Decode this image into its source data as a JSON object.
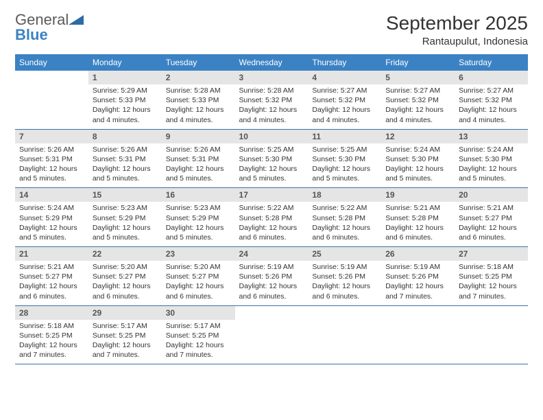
{
  "logo": {
    "text1": "General",
    "text2": "Blue",
    "shape_color": "#2f6aa8"
  },
  "title": "September 2025",
  "location": "Rantaupulut, Indonesia",
  "header_bg": "#3b82c4",
  "header_fg": "#ffffff",
  "daynum_bg": "#e5e5e5",
  "week_border": "#3b6fa0",
  "day_names": [
    "Sunday",
    "Monday",
    "Tuesday",
    "Wednesday",
    "Thursday",
    "Friday",
    "Saturday"
  ],
  "weeks": [
    [
      {
        "n": "",
        "lines": []
      },
      {
        "n": "1",
        "lines": [
          "Sunrise: 5:29 AM",
          "Sunset: 5:33 PM",
          "Daylight: 12 hours and 4 minutes."
        ]
      },
      {
        "n": "2",
        "lines": [
          "Sunrise: 5:28 AM",
          "Sunset: 5:33 PM",
          "Daylight: 12 hours and 4 minutes."
        ]
      },
      {
        "n": "3",
        "lines": [
          "Sunrise: 5:28 AM",
          "Sunset: 5:32 PM",
          "Daylight: 12 hours and 4 minutes."
        ]
      },
      {
        "n": "4",
        "lines": [
          "Sunrise: 5:27 AM",
          "Sunset: 5:32 PM",
          "Daylight: 12 hours and 4 minutes."
        ]
      },
      {
        "n": "5",
        "lines": [
          "Sunrise: 5:27 AM",
          "Sunset: 5:32 PM",
          "Daylight: 12 hours and 4 minutes."
        ]
      },
      {
        "n": "6",
        "lines": [
          "Sunrise: 5:27 AM",
          "Sunset: 5:32 PM",
          "Daylight: 12 hours and 4 minutes."
        ]
      }
    ],
    [
      {
        "n": "7",
        "lines": [
          "Sunrise: 5:26 AM",
          "Sunset: 5:31 PM",
          "Daylight: 12 hours and 5 minutes."
        ]
      },
      {
        "n": "8",
        "lines": [
          "Sunrise: 5:26 AM",
          "Sunset: 5:31 PM",
          "Daylight: 12 hours and 5 minutes."
        ]
      },
      {
        "n": "9",
        "lines": [
          "Sunrise: 5:26 AM",
          "Sunset: 5:31 PM",
          "Daylight: 12 hours and 5 minutes."
        ]
      },
      {
        "n": "10",
        "lines": [
          "Sunrise: 5:25 AM",
          "Sunset: 5:30 PM",
          "Daylight: 12 hours and 5 minutes."
        ]
      },
      {
        "n": "11",
        "lines": [
          "Sunrise: 5:25 AM",
          "Sunset: 5:30 PM",
          "Daylight: 12 hours and 5 minutes."
        ]
      },
      {
        "n": "12",
        "lines": [
          "Sunrise: 5:24 AM",
          "Sunset: 5:30 PM",
          "Daylight: 12 hours and 5 minutes."
        ]
      },
      {
        "n": "13",
        "lines": [
          "Sunrise: 5:24 AM",
          "Sunset: 5:30 PM",
          "Daylight: 12 hours and 5 minutes."
        ]
      }
    ],
    [
      {
        "n": "14",
        "lines": [
          "Sunrise: 5:24 AM",
          "Sunset: 5:29 PM",
          "Daylight: 12 hours and 5 minutes."
        ]
      },
      {
        "n": "15",
        "lines": [
          "Sunrise: 5:23 AM",
          "Sunset: 5:29 PM",
          "Daylight: 12 hours and 5 minutes."
        ]
      },
      {
        "n": "16",
        "lines": [
          "Sunrise: 5:23 AM",
          "Sunset: 5:29 PM",
          "Daylight: 12 hours and 5 minutes."
        ]
      },
      {
        "n": "17",
        "lines": [
          "Sunrise: 5:22 AM",
          "Sunset: 5:28 PM",
          "Daylight: 12 hours and 6 minutes."
        ]
      },
      {
        "n": "18",
        "lines": [
          "Sunrise: 5:22 AM",
          "Sunset: 5:28 PM",
          "Daylight: 12 hours and 6 minutes."
        ]
      },
      {
        "n": "19",
        "lines": [
          "Sunrise: 5:21 AM",
          "Sunset: 5:28 PM",
          "Daylight: 12 hours and 6 minutes."
        ]
      },
      {
        "n": "20",
        "lines": [
          "Sunrise: 5:21 AM",
          "Sunset: 5:27 PM",
          "Daylight: 12 hours and 6 minutes."
        ]
      }
    ],
    [
      {
        "n": "21",
        "lines": [
          "Sunrise: 5:21 AM",
          "Sunset: 5:27 PM",
          "Daylight: 12 hours and 6 minutes."
        ]
      },
      {
        "n": "22",
        "lines": [
          "Sunrise: 5:20 AM",
          "Sunset: 5:27 PM",
          "Daylight: 12 hours and 6 minutes."
        ]
      },
      {
        "n": "23",
        "lines": [
          "Sunrise: 5:20 AM",
          "Sunset: 5:27 PM",
          "Daylight: 12 hours and 6 minutes."
        ]
      },
      {
        "n": "24",
        "lines": [
          "Sunrise: 5:19 AM",
          "Sunset: 5:26 PM",
          "Daylight: 12 hours and 6 minutes."
        ]
      },
      {
        "n": "25",
        "lines": [
          "Sunrise: 5:19 AM",
          "Sunset: 5:26 PM",
          "Daylight: 12 hours and 6 minutes."
        ]
      },
      {
        "n": "26",
        "lines": [
          "Sunrise: 5:19 AM",
          "Sunset: 5:26 PM",
          "Daylight: 12 hours and 7 minutes."
        ]
      },
      {
        "n": "27",
        "lines": [
          "Sunrise: 5:18 AM",
          "Sunset: 5:25 PM",
          "Daylight: 12 hours and 7 minutes."
        ]
      }
    ],
    [
      {
        "n": "28",
        "lines": [
          "Sunrise: 5:18 AM",
          "Sunset: 5:25 PM",
          "Daylight: 12 hours and 7 minutes."
        ]
      },
      {
        "n": "29",
        "lines": [
          "Sunrise: 5:17 AM",
          "Sunset: 5:25 PM",
          "Daylight: 12 hours and 7 minutes."
        ]
      },
      {
        "n": "30",
        "lines": [
          "Sunrise: 5:17 AM",
          "Sunset: 5:25 PM",
          "Daylight: 12 hours and 7 minutes."
        ]
      },
      {
        "n": "",
        "lines": []
      },
      {
        "n": "",
        "lines": []
      },
      {
        "n": "",
        "lines": []
      },
      {
        "n": "",
        "lines": []
      }
    ]
  ]
}
